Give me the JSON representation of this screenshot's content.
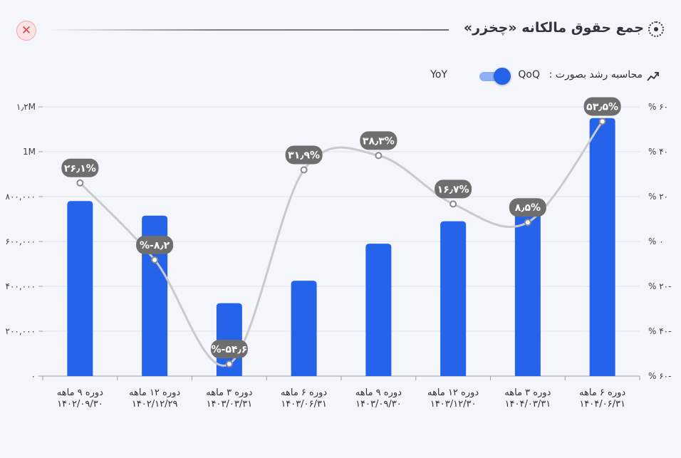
{
  "title": "جمع حقوق مالکانه «چخزر»",
  "toggle": {
    "label": "محاسبه رشد بصورت :",
    "left_option": "QoQ",
    "right_option": "YoY"
  },
  "colors": {
    "bar": "#2563eb",
    "line": "#c9cacd",
    "label_bg": "#6e6e6e",
    "close": "#e0424f"
  },
  "chart_data": {
    "type": "bar",
    "categories": [
      [
        "دوره ۹ ماهه",
        "۱۴۰۲/۰۹/۳۰"
      ],
      [
        "دوره ۱۲ ماهه",
        "۱۴۰۲/۱۲/۲۹"
      ],
      [
        "دوره ۳ ماهه",
        "۱۴۰۳/۰۳/۳۱"
      ],
      [
        "دوره ۶ ماهه",
        "۱۴۰۳/۰۶/۳۱"
      ],
      [
        "دوره ۹ ماهه",
        "۱۴۰۳/۰۹/۳۰"
      ],
      [
        "دوره ۱۲ ماهه",
        "۱۴۰۳/۱۲/۳۰"
      ],
      [
        "دوره ۳ ماهه",
        "۱۴۰۴/۰۳/۳۱"
      ],
      [
        "دوره ۶ ماهه",
        "۱۴۰۴/۰۶/۳۱"
      ]
    ],
    "values": [
      780000,
      715000,
      325000,
      425000,
      590000,
      690000,
      735000,
      1150000
    ],
    "growth_values": [
      26.1,
      -8.2,
      -54.6,
      31.9,
      38.3,
      16.7,
      8.5,
      53.5
    ],
    "growth_labels": [
      "۲۶٫۱%",
      "%-۸٫۲",
      "%-۵۴٫۶",
      "۳۱٫۹%",
      "۳۸٫۳%",
      "۱۶٫۷%",
      "۸٫۵%",
      "۵۳٫۵%"
    ],
    "left_axis": {
      "ylim": [
        0,
        1200000
      ],
      "ticks": [
        0,
        200000,
        400000,
        600000,
        800000,
        1000000,
        1200000
      ],
      "tick_labels": [
        "۰",
        "۲۰۰,۰۰۰",
        "۴۰۰,۰۰۰",
        "۶۰۰,۰۰۰",
        "۸۰۰,۰۰۰",
        "1M",
        "۱٫۲M"
      ]
    },
    "right_axis": {
      "ylim": [
        -60,
        60
      ],
      "ticks": [
        -60,
        -40,
        -20,
        0,
        20,
        40,
        60
      ],
      "tick_labels": [
        "% ۶۰-",
        "% ۴۰-",
        "% ۲۰-",
        "% ۰",
        "% ۲۰",
        "% ۴۰",
        "% ۶۰"
      ]
    },
    "grid": true
  }
}
